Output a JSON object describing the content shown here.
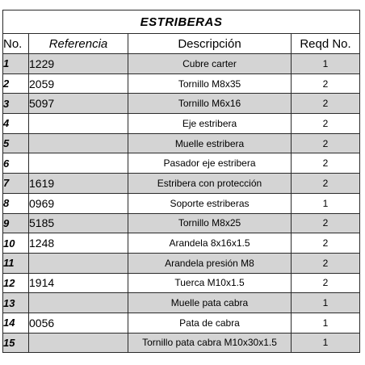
{
  "table": {
    "title": "ESTRIBERAS",
    "headers": {
      "no": "No.",
      "reference": "Referencia",
      "description": "Descripción",
      "qty": "Reqd No."
    },
    "rows": [
      {
        "no": "1",
        "ref": "1229",
        "desc": "Cubre carter",
        "qty": "1",
        "shaded": true
      },
      {
        "no": "2",
        "ref": "2059",
        "desc": "Tornillo M8x35",
        "qty": "2",
        "shaded": false
      },
      {
        "no": "3",
        "ref": "5097",
        "desc": "Tornillo M6x16",
        "qty": "2",
        "shaded": true
      },
      {
        "no": "4",
        "ref": "",
        "desc": "Eje estribera",
        "qty": "2",
        "shaded": false
      },
      {
        "no": "5",
        "ref": "",
        "desc": "Muelle estribera",
        "qty": "2",
        "shaded": true
      },
      {
        "no": "6",
        "ref": "",
        "desc": "Pasador eje estribera",
        "qty": "2",
        "shaded": false
      },
      {
        "no": "7",
        "ref": "1619",
        "desc": "Estribera con protección",
        "qty": "2",
        "shaded": true
      },
      {
        "no": "8",
        "ref": "0969",
        "desc": "Soporte estriberas",
        "qty": "1",
        "shaded": false
      },
      {
        "no": "9",
        "ref": "5185",
        "desc": "Tornillo M8x25",
        "qty": "2",
        "shaded": true
      },
      {
        "no": "10",
        "ref": "1248",
        "desc": "Arandela 8x16x1.5",
        "qty": "2",
        "shaded": false
      },
      {
        "no": "11",
        "ref": "",
        "desc": "Arandela presión M8",
        "qty": "2",
        "shaded": true
      },
      {
        "no": "12",
        "ref": "1914",
        "desc": "Tuerca M10x1.5",
        "qty": "2",
        "shaded": false
      },
      {
        "no": "13",
        "ref": "",
        "desc": "Muelle pata cabra",
        "qty": "1",
        "shaded": true
      },
      {
        "no": "14",
        "ref": "0056",
        "desc": "Pata de cabra",
        "qty": "1",
        "shaded": false
      },
      {
        "no": "15",
        "ref": "",
        "desc": "Tornillo pata cabra M10x30x1.5",
        "qty": "1",
        "shaded": true
      }
    ]
  }
}
